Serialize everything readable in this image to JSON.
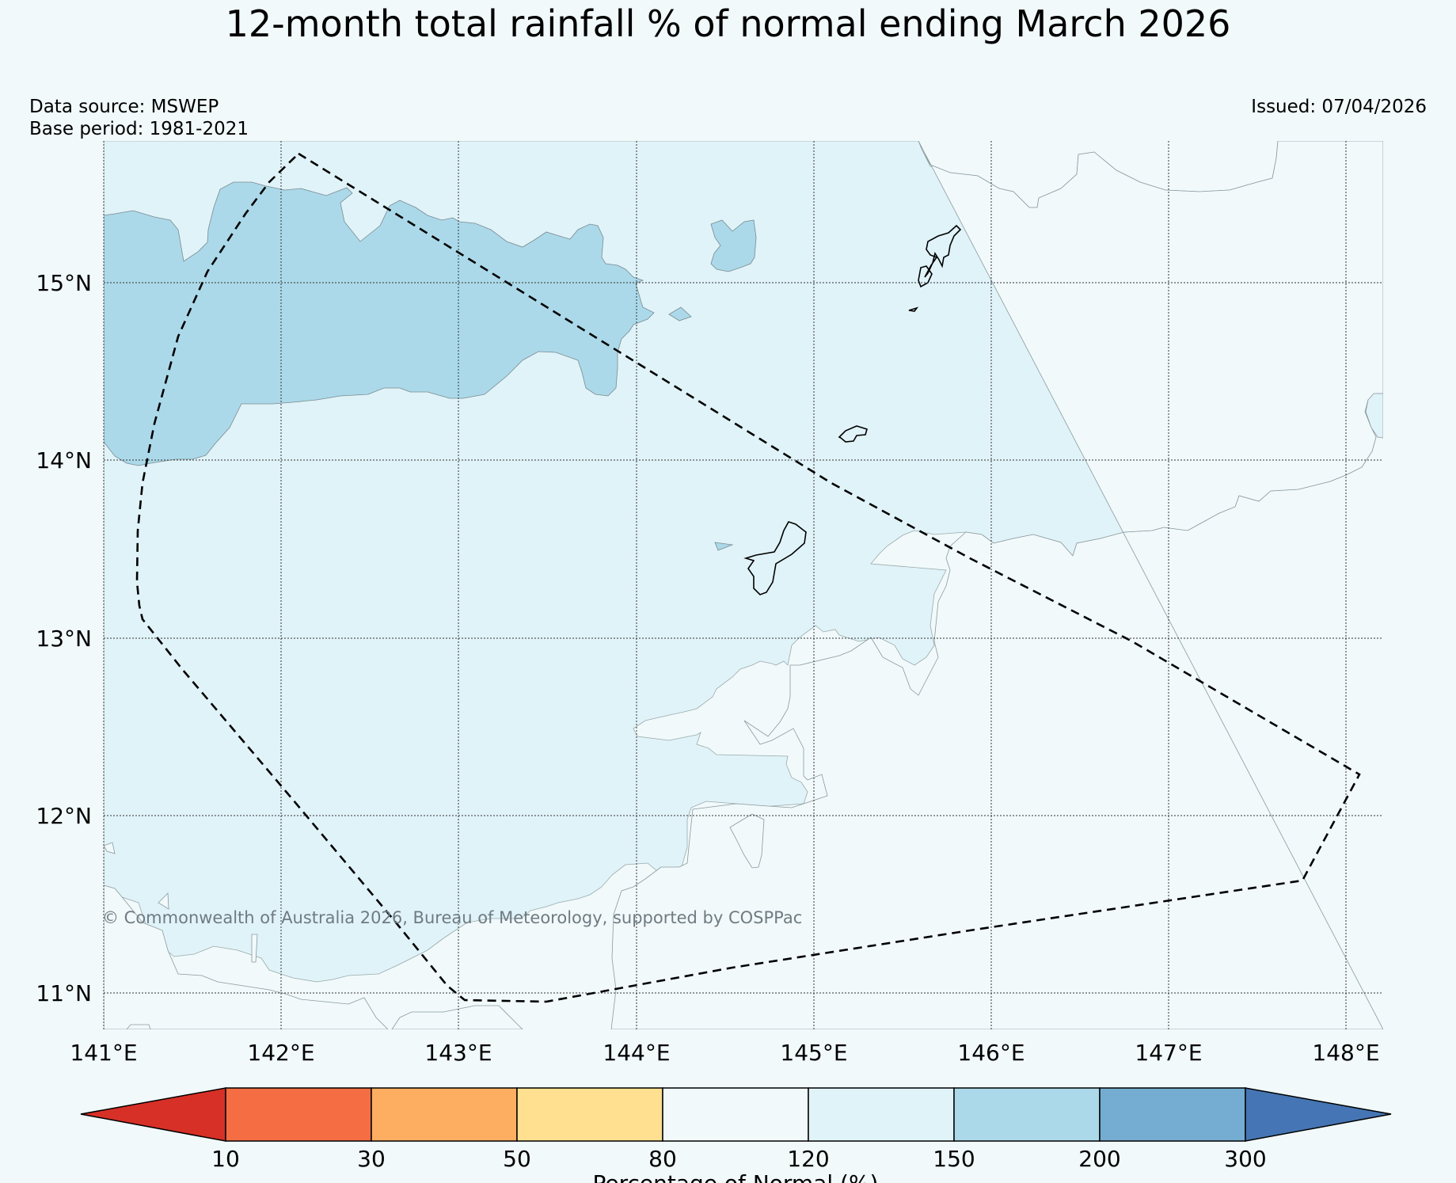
{
  "title": "12-month total rainfall % of normal ending March 2026",
  "data_source": "Data source: MSWEP",
  "base_period": "Base period: 1981-2021",
  "issued": "Issued: 07/04/2026",
  "credit": "© Commonwealth of Australia 2026, Bureau of Meteorology, supported by COSPPac",
  "map": {
    "lon_range": [
      141,
      148.2
    ],
    "lat_range": [
      10.8,
      15.8
    ],
    "lat_ticks": [
      "15°N",
      "14°N",
      "13°N",
      "12°N",
      "11°N"
    ],
    "lon_ticks": [
      "141°E",
      "142°E",
      "143°E",
      "144°E",
      "145°E",
      "146°E",
      "147°E",
      "148°E"
    ],
    "gridlines": "dotted"
  },
  "colorbar": {
    "title": "Percentage of Normal (%)",
    "ticks": [
      "10",
      "30",
      "50",
      "80",
      "120",
      "150",
      "200",
      "300"
    ],
    "colors": [
      "#d73027",
      "#f46d43",
      "#fdae61",
      "#fee090",
      "#f1f9fb",
      "#e0f3f8",
      "#abd9e9",
      "#74add1",
      "#4575b4"
    ],
    "extend": "both"
  }
}
